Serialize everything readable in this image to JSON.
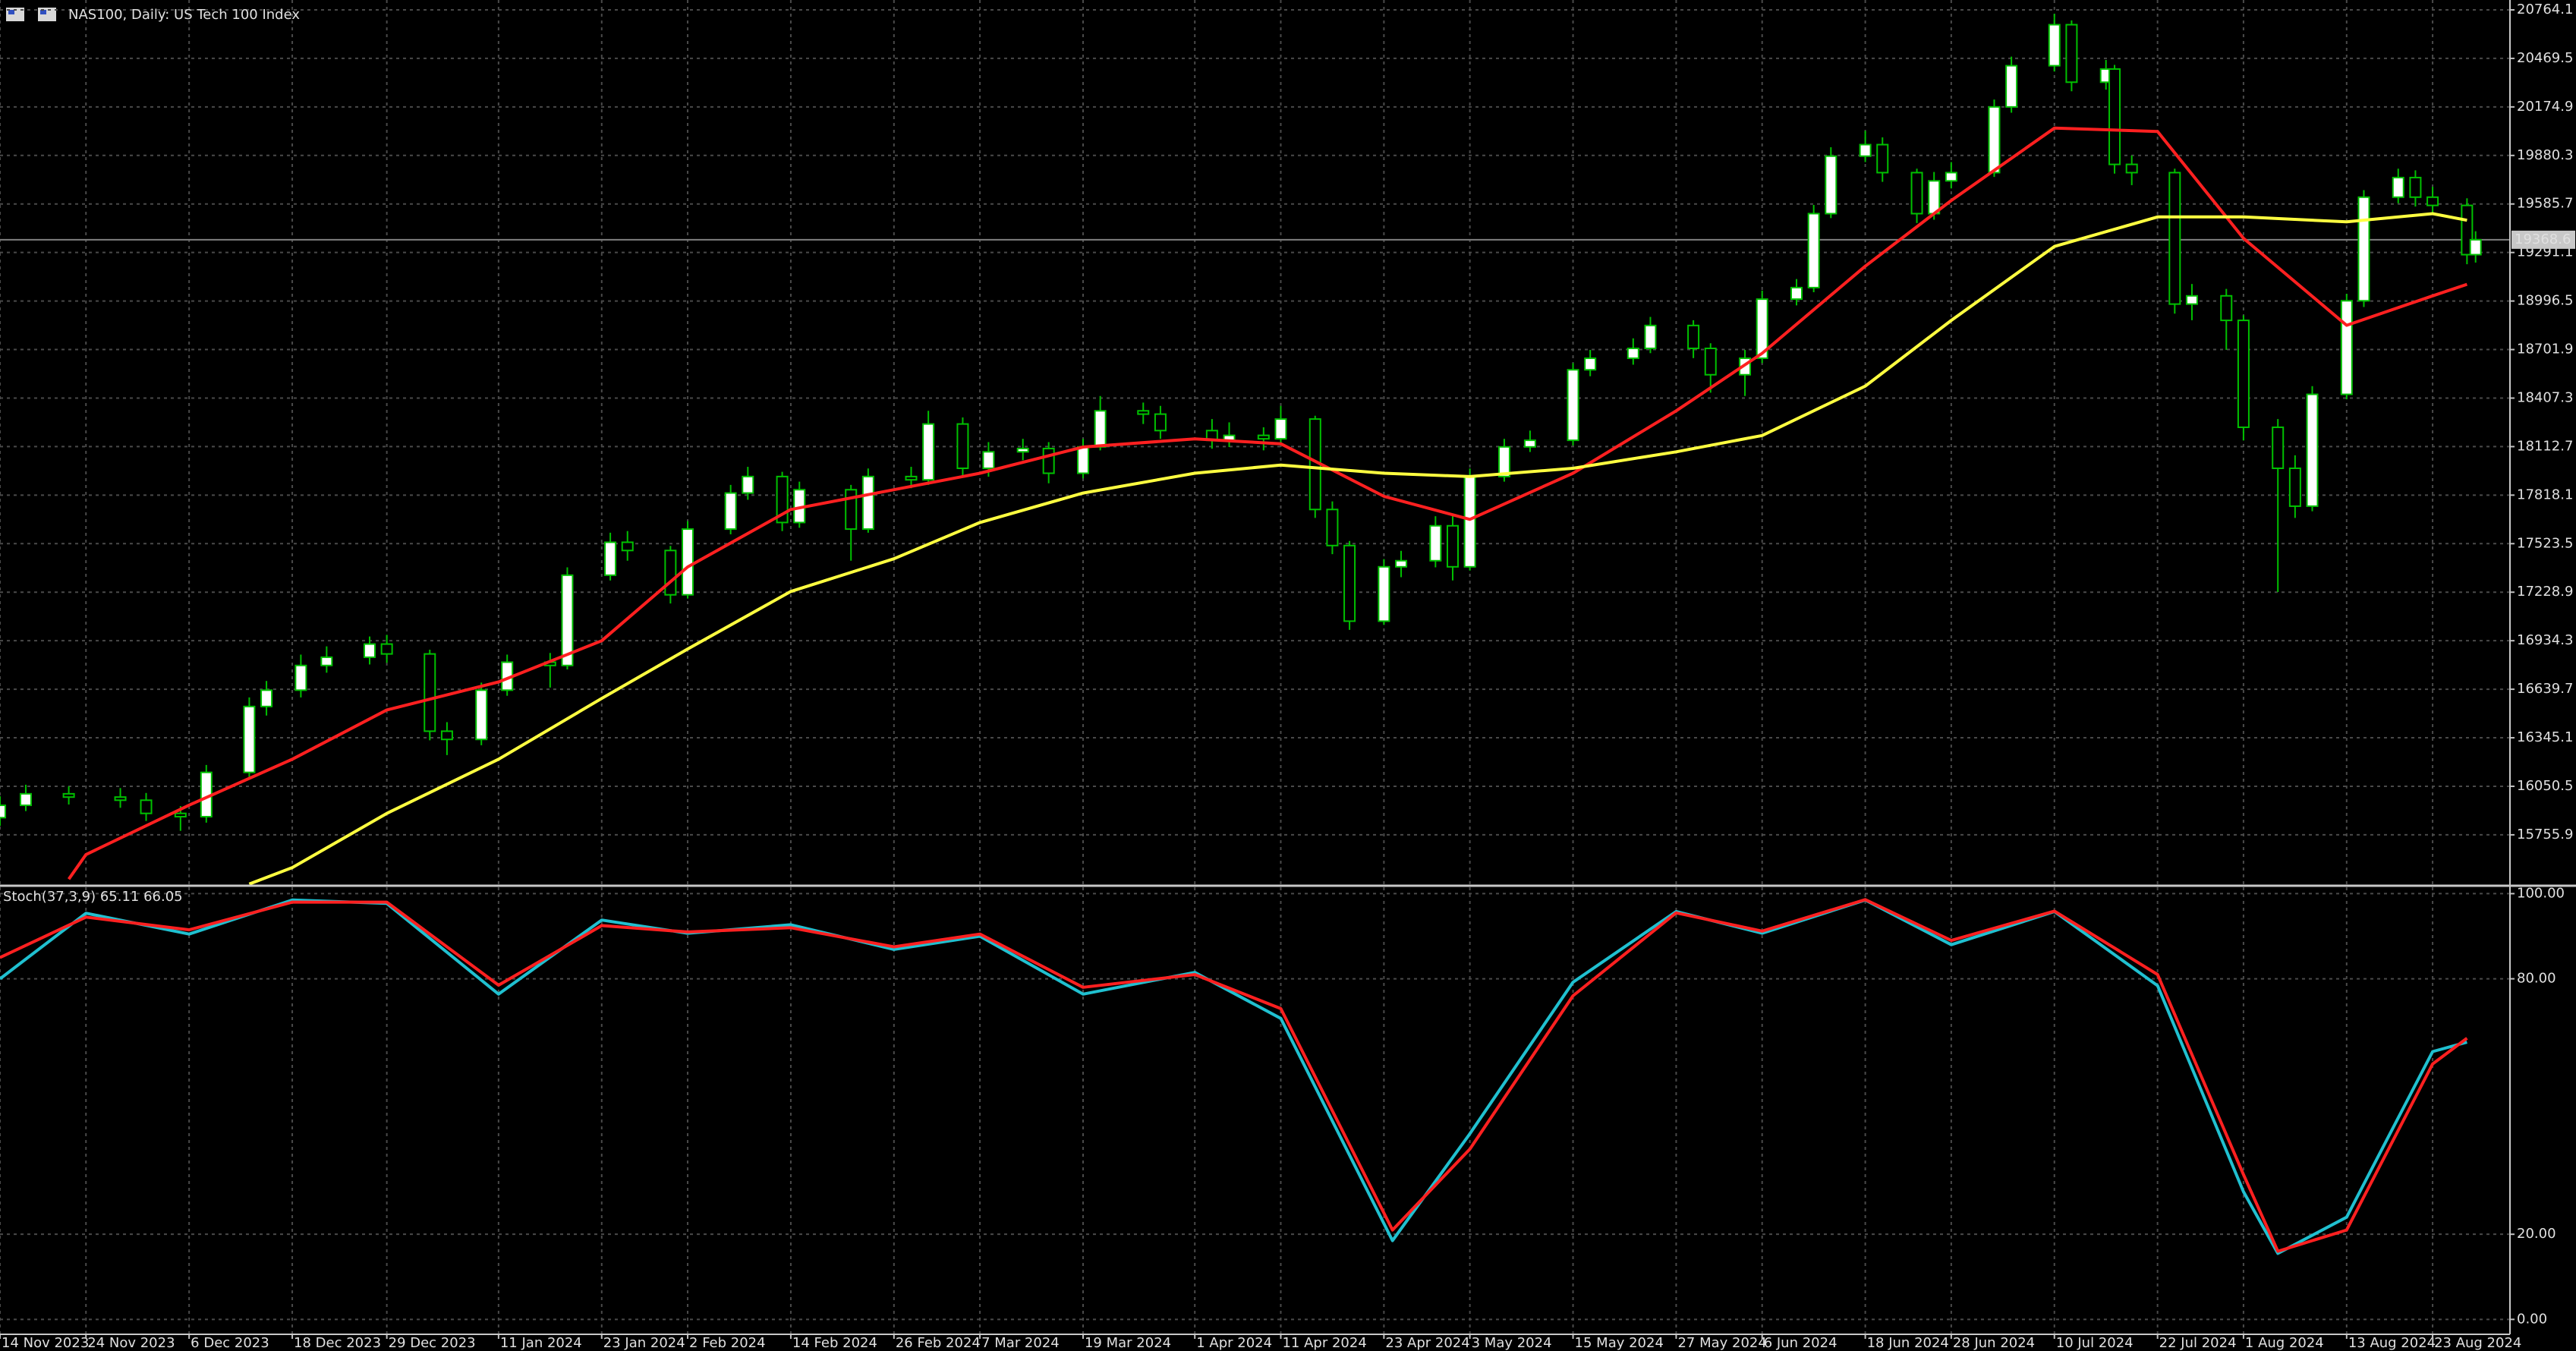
{
  "chart_data": [
    {
      "type": "candlestick",
      "title": "NAS100, Daily:  US Tech 100 Index",
      "x": [
        "2023-11-14",
        "2023-11-17",
        "2023-11-22",
        "2023-11-28",
        "2023-12-01",
        "2023-12-05",
        "2023-12-08",
        "2023-12-13",
        "2023-12-15",
        "2023-12-19",
        "2023-12-22",
        "2023-12-27",
        "2023-12-29",
        "2024-01-03",
        "2024-01-05",
        "2024-01-09",
        "2024-01-12",
        "2024-01-17",
        "2024-01-19",
        "2024-01-24",
        "2024-01-26",
        "2024-01-31",
        "2024-02-02",
        "2024-02-07",
        "2024-02-09",
        "2024-02-13",
        "2024-02-15",
        "2024-02-21",
        "2024-02-23",
        "2024-02-28",
        "2024-03-01",
        "2024-03-05",
        "2024-03-08",
        "2024-03-12",
        "2024-03-15",
        "2024-03-19",
        "2024-03-21",
        "2024-03-26",
        "2024-03-28",
        "2024-04-03",
        "2024-04-05",
        "2024-04-09",
        "2024-04-11",
        "2024-04-15",
        "2024-04-17",
        "2024-04-19",
        "2024-04-23",
        "2024-04-25",
        "2024-04-29",
        "2024-05-01",
        "2024-05-03",
        "2024-05-07",
        "2024-05-10",
        "2024-05-15",
        "2024-05-17",
        "2024-05-22",
        "2024-05-24",
        "2024-05-29",
        "2024-05-31",
        "2024-06-04",
        "2024-06-06",
        "2024-06-10",
        "2024-06-12",
        "2024-06-14",
        "2024-06-18",
        "2024-06-20",
        "2024-06-24",
        "2024-06-26",
        "2024-06-28",
        "2024-07-03",
        "2024-07-05",
        "2024-07-10",
        "2024-07-12",
        "2024-07-16",
        "2024-07-17",
        "2024-07-19",
        "2024-07-24",
        "2024-07-26",
        "2024-07-30",
        "2024-08-01",
        "2024-08-05",
        "2024-08-07",
        "2024-08-09",
        "2024-08-13",
        "2024-08-15",
        "2024-08-19",
        "2024-08-21",
        "2024-08-23",
        "2024-08-27",
        "2024-08-28"
      ],
      "open": [
        15860,
        15935,
        16005,
        15985,
        15966,
        15886,
        15866,
        16135,
        16535,
        16634,
        16784,
        16834,
        16914,
        16854,
        16385,
        16335,
        16634,
        16804,
        16784,
        17332,
        17532,
        17482,
        17213,
        17612,
        17831,
        17931,
        17652,
        17851,
        17612,
        17931,
        17911,
        18250,
        17981,
        18081,
        18101,
        17951,
        18111,
        18330,
        18310,
        18210,
        18151,
        18181,
        18160,
        18280,
        17731,
        17512,
        17053,
        17383,
        17420,
        17632,
        17383,
        17931,
        18111,
        18151,
        18579,
        18649,
        18709,
        18848,
        18709,
        18549,
        18649,
        19008,
        19078,
        19527,
        19876,
        19946,
        19776,
        19527,
        19726,
        19776,
        20175,
        20425,
        20674,
        20325,
        20405,
        19826,
        19776,
        18978,
        19028,
        18879,
        18230,
        17981,
        17751,
        18430,
        18998,
        19627,
        19746,
        19627,
        19577,
        19278
      ],
      "high": [
        15990,
        16060,
        16050,
        16040,
        16010,
        15930,
        16180,
        16590,
        16690,
        16850,
        16900,
        16960,
        16970,
        16880,
        16440,
        16680,
        16850,
        16860,
        17380,
        17590,
        17600,
        17510,
        17660,
        17880,
        17990,
        17960,
        17900,
        17880,
        17980,
        17990,
        18330,
        18290,
        18140,
        18160,
        18140,
        18160,
        18420,
        18380,
        18360,
        18280,
        18260,
        18230,
        18360,
        18300,
        17780,
        17540,
        17430,
        17480,
        17690,
        17700,
        17980,
        18160,
        18210,
        18620,
        18700,
        18770,
        18900,
        18880,
        18740,
        18700,
        19060,
        19130,
        19580,
        19930,
        20030,
        19990,
        19800,
        19780,
        19840,
        20220,
        20480,
        20740,
        20700,
        20460,
        20430,
        19880,
        19800,
        19100,
        19070,
        18910,
        18280,
        18060,
        18480,
        19040,
        19670,
        19800,
        19790,
        19690,
        19620,
        19420
      ],
      "low": [
        15810,
        15900,
        15940,
        15920,
        15840,
        15780,
        15830,
        16100,
        16480,
        16590,
        16740,
        16790,
        16800,
        16330,
        16240,
        16300,
        16600,
        16650,
        16760,
        17300,
        17420,
        17160,
        17190,
        17580,
        17790,
        17600,
        17620,
        17420,
        17590,
        17860,
        17880,
        17930,
        17930,
        18030,
        17890,
        17920,
        18090,
        18250,
        18160,
        18100,
        18110,
        18090,
        18120,
        17680,
        17460,
        17000,
        17030,
        17320,
        17380,
        17300,
        17360,
        17900,
        18080,
        18120,
        18540,
        18610,
        18680,
        18650,
        18440,
        18420,
        18620,
        18970,
        19050,
        19500,
        19840,
        19720,
        19470,
        19490,
        19680,
        19750,
        20140,
        20390,
        20270,
        20280,
        19770,
        19700,
        18920,
        18880,
        18700,
        18150,
        17230,
        17680,
        17720,
        18400,
        18960,
        19590,
        19570,
        19520,
        19220,
        19230
      ],
      "close": [
        15935,
        16005,
        15985,
        15966,
        15886,
        15866,
        16135,
        16535,
        16634,
        16784,
        16834,
        16914,
        16854,
        16385,
        16335,
        16634,
        16804,
        16784,
        17332,
        17532,
        17482,
        17213,
        17612,
        17831,
        17931,
        17652,
        17851,
        17612,
        17931,
        17911,
        18250,
        17981,
        18081,
        18101,
        17951,
        18111,
        18330,
        18310,
        18210,
        18151,
        18181,
        18160,
        18280,
        17731,
        17512,
        17053,
        17383,
        17420,
        17632,
        17383,
        17931,
        18111,
        18151,
        18579,
        18649,
        18709,
        18848,
        18709,
        18549,
        18649,
        19008,
        19078,
        19527,
        19876,
        19946,
        19776,
        19527,
        19726,
        19776,
        20175,
        20425,
        20674,
        20325,
        20405,
        19826,
        19776,
        18978,
        19028,
        18879,
        18230,
        17981,
        17751,
        18430,
        18998,
        19627,
        19746,
        19627,
        19577,
        19278,
        19368.6
      ],
      "up_color": "#ffffff",
      "down_color": "#000000",
      "wick_color": "#00c000",
      "lines": [
        {
          "color": "#ff2020",
          "x": [
            "2023-11-22",
            "2023-11-24",
            "2023-12-06",
            "2023-12-18",
            "2023-12-29",
            "2024-01-11",
            "2024-01-23",
            "2024-02-02",
            "2024-02-14",
            "2024-02-26",
            "2024-03-07",
            "2024-03-19",
            "2024-04-01",
            "2024-04-11",
            "2024-04-23",
            "2024-05-03",
            "2024-05-15",
            "2024-05-27",
            "2024-06-06",
            "2024-06-18",
            "2024-06-28",
            "2024-07-10",
            "2024-07-22",
            "2024-08-01",
            "2024-08-13",
            "2024-08-23",
            "2024-08-27"
          ],
          "values": [
            15487,
            15636,
            15936,
            16215,
            16514,
            16684,
            16934,
            17382,
            17731,
            17851,
            17951,
            18110,
            18160,
            18130,
            17811,
            17671,
            17951,
            18330,
            18679,
            19208,
            19607,
            20046,
            20026,
            19377,
            18849,
            19028,
            19098
          ]
        },
        {
          "color": "#ffff40",
          "x": [
            "2023-12-13",
            "2023-12-18",
            "2023-12-29",
            "2024-01-11",
            "2024-01-23",
            "2024-02-02",
            "2024-02-14",
            "2024-02-26",
            "2024-03-07",
            "2024-03-19",
            "2024-04-01",
            "2024-04-11",
            "2024-04-23",
            "2024-05-03",
            "2024-05-15",
            "2024-05-27",
            "2024-06-06",
            "2024-06-18",
            "2024-06-28",
            "2024-07-10",
            "2024-07-22",
            "2024-08-01",
            "2024-08-13",
            "2024-08-23",
            "2024-08-27"
          ],
          "values": [
            15457,
            15557,
            15886,
            16215,
            16584,
            16884,
            17233,
            17432,
            17652,
            17831,
            17951,
            18001,
            17951,
            17931,
            17981,
            18081,
            18180,
            18480,
            18879,
            19328,
            19507,
            19507,
            19477,
            19527,
            19487
          ]
        }
      ],
      "last_price": 19368.6,
      "xlim": [
        "2023-11-14",
        "2024-09-01"
      ],
      "ylim": [
        15456,
        20824
      ],
      "yticks": [
        20764.1,
        20469.5,
        20174.9,
        19880.3,
        19585.7,
        19291.1,
        18996.5,
        18701.9,
        18407.3,
        18112.7,
        17818.1,
        17523.5,
        17228.9,
        16934.3,
        16639.7,
        16345.1,
        16050.5,
        15755.9
      ],
      "grid": true
    },
    {
      "type": "line",
      "title": "Stoch(37,3,9) 65.11 66.05",
      "series": [
        {
          "color": "#20c0d0",
          "x": [
            "2023-11-14",
            "2023-11-24",
            "2023-12-06",
            "2023-12-18",
            "2023-12-29",
            "2024-01-11",
            "2024-01-23",
            "2024-02-02",
            "2024-02-14",
            "2024-02-26",
            "2024-03-07",
            "2024-03-19",
            "2024-04-01",
            "2024-04-11",
            "2024-04-24",
            "2024-05-03",
            "2024-05-15",
            "2024-05-27",
            "2024-06-06",
            "2024-06-18",
            "2024-06-28",
            "2024-07-10",
            "2024-07-22",
            "2024-08-01",
            "2024-08-05",
            "2024-08-13",
            "2024-08-23",
            "2024-08-27"
          ],
          "values": [
            80,
            95.4,
            90.5,
            98.5,
            97.7,
            76.4,
            93.8,
            90.7,
            92.7,
            86.9,
            90,
            76.4,
            81.5,
            70.7,
            18.5,
            43.6,
            79.2,
            95.8,
            90.7,
            98.5,
            88,
            95.8,
            78.4,
            30,
            15.5,
            24,
            62.9,
            65.11
          ]
        },
        {
          "color": "#ff2020",
          "x": [
            "2023-11-14",
            "2023-11-24",
            "2023-12-06",
            "2023-12-18",
            "2023-12-29",
            "2024-01-11",
            "2024-01-23",
            "2024-02-02",
            "2024-02-14",
            "2024-02-26",
            "2024-03-07",
            "2024-03-19",
            "2024-04-01",
            "2024-04-11",
            "2024-04-24",
            "2024-05-03",
            "2024-05-15",
            "2024-05-27",
            "2024-06-06",
            "2024-06-18",
            "2024-06-28",
            "2024-07-10",
            "2024-07-22",
            "2024-08-01",
            "2024-08-05",
            "2024-08-13",
            "2024-08-23",
            "2024-08-27"
          ],
          "values": [
            85,
            94.5,
            91.5,
            98,
            98,
            78.5,
            92.5,
            91,
            92,
            87.5,
            90.5,
            78,
            81,
            73,
            21,
            40,
            76,
            95.5,
            91.2,
            98.6,
            89,
            95.9,
            81,
            34,
            16,
            21,
            60,
            66.05
          ]
        }
      ],
      "xlim": [
        "2023-11-14",
        "2024-09-01"
      ],
      "xticks": [
        {
          "value": "2023-11-14",
          "label": "14 Nov 2023"
        },
        {
          "value": "2023-11-24",
          "label": "24 Nov 2023"
        },
        {
          "value": "2023-12-06",
          "label": "6 Dec 2023"
        },
        {
          "value": "2023-12-18",
          "label": "18 Dec 2023"
        },
        {
          "value": "2023-12-29",
          "label": "29 Dec 2023"
        },
        {
          "value": "2024-01-11",
          "label": "11 Jan 2024"
        },
        {
          "value": "2024-01-23",
          "label": "23 Jan 2024"
        },
        {
          "value": "2024-02-02",
          "label": "2 Feb 2024"
        },
        {
          "value": "2024-02-14",
          "label": "14 Feb 2024"
        },
        {
          "value": "2024-02-26",
          "label": "26 Feb 2024"
        },
        {
          "value": "2024-03-07",
          "label": "7 Mar 2024"
        },
        {
          "value": "2024-03-19",
          "label": "19 Mar 2024"
        },
        {
          "value": "2024-04-01",
          "label": "1 Apr 2024"
        },
        {
          "value": "2024-04-11",
          "label": "11 Apr 2024"
        },
        {
          "value": "2024-04-23",
          "label": "23 Apr 2024"
        },
        {
          "value": "2024-05-03",
          "label": "3 May 2024"
        },
        {
          "value": "2024-05-15",
          "label": "15 May 2024"
        },
        {
          "value": "2024-05-27",
          "label": "27 May 2024"
        },
        {
          "value": "2024-06-06",
          "label": "6 Jun 2024"
        },
        {
          "value": "2024-06-18",
          "label": "18 Jun 2024"
        },
        {
          "value": "2024-06-28",
          "label": "28 Jun 2024"
        },
        {
          "value": "2024-07-10",
          "label": "10 Jul 2024"
        },
        {
          "value": "2024-07-22",
          "label": "22 Jul 2024"
        },
        {
          "value": "2024-08-01",
          "label": "1 Aug 2024"
        },
        {
          "value": "2024-08-13",
          "label": "13 Aug 2024"
        },
        {
          "value": "2024-08-23",
          "label": "23 Aug 2024"
        }
      ],
      "ylim": [
        -3.5,
        101.5
      ],
      "yticks": [
        {
          "value": 100,
          "label": "100.00"
        },
        {
          "value": 80,
          "label": "80.00"
        },
        {
          "value": 20,
          "label": "20.00"
        },
        {
          "value": 0,
          "label": "0.00"
        }
      ],
      "grid": true
    }
  ]
}
